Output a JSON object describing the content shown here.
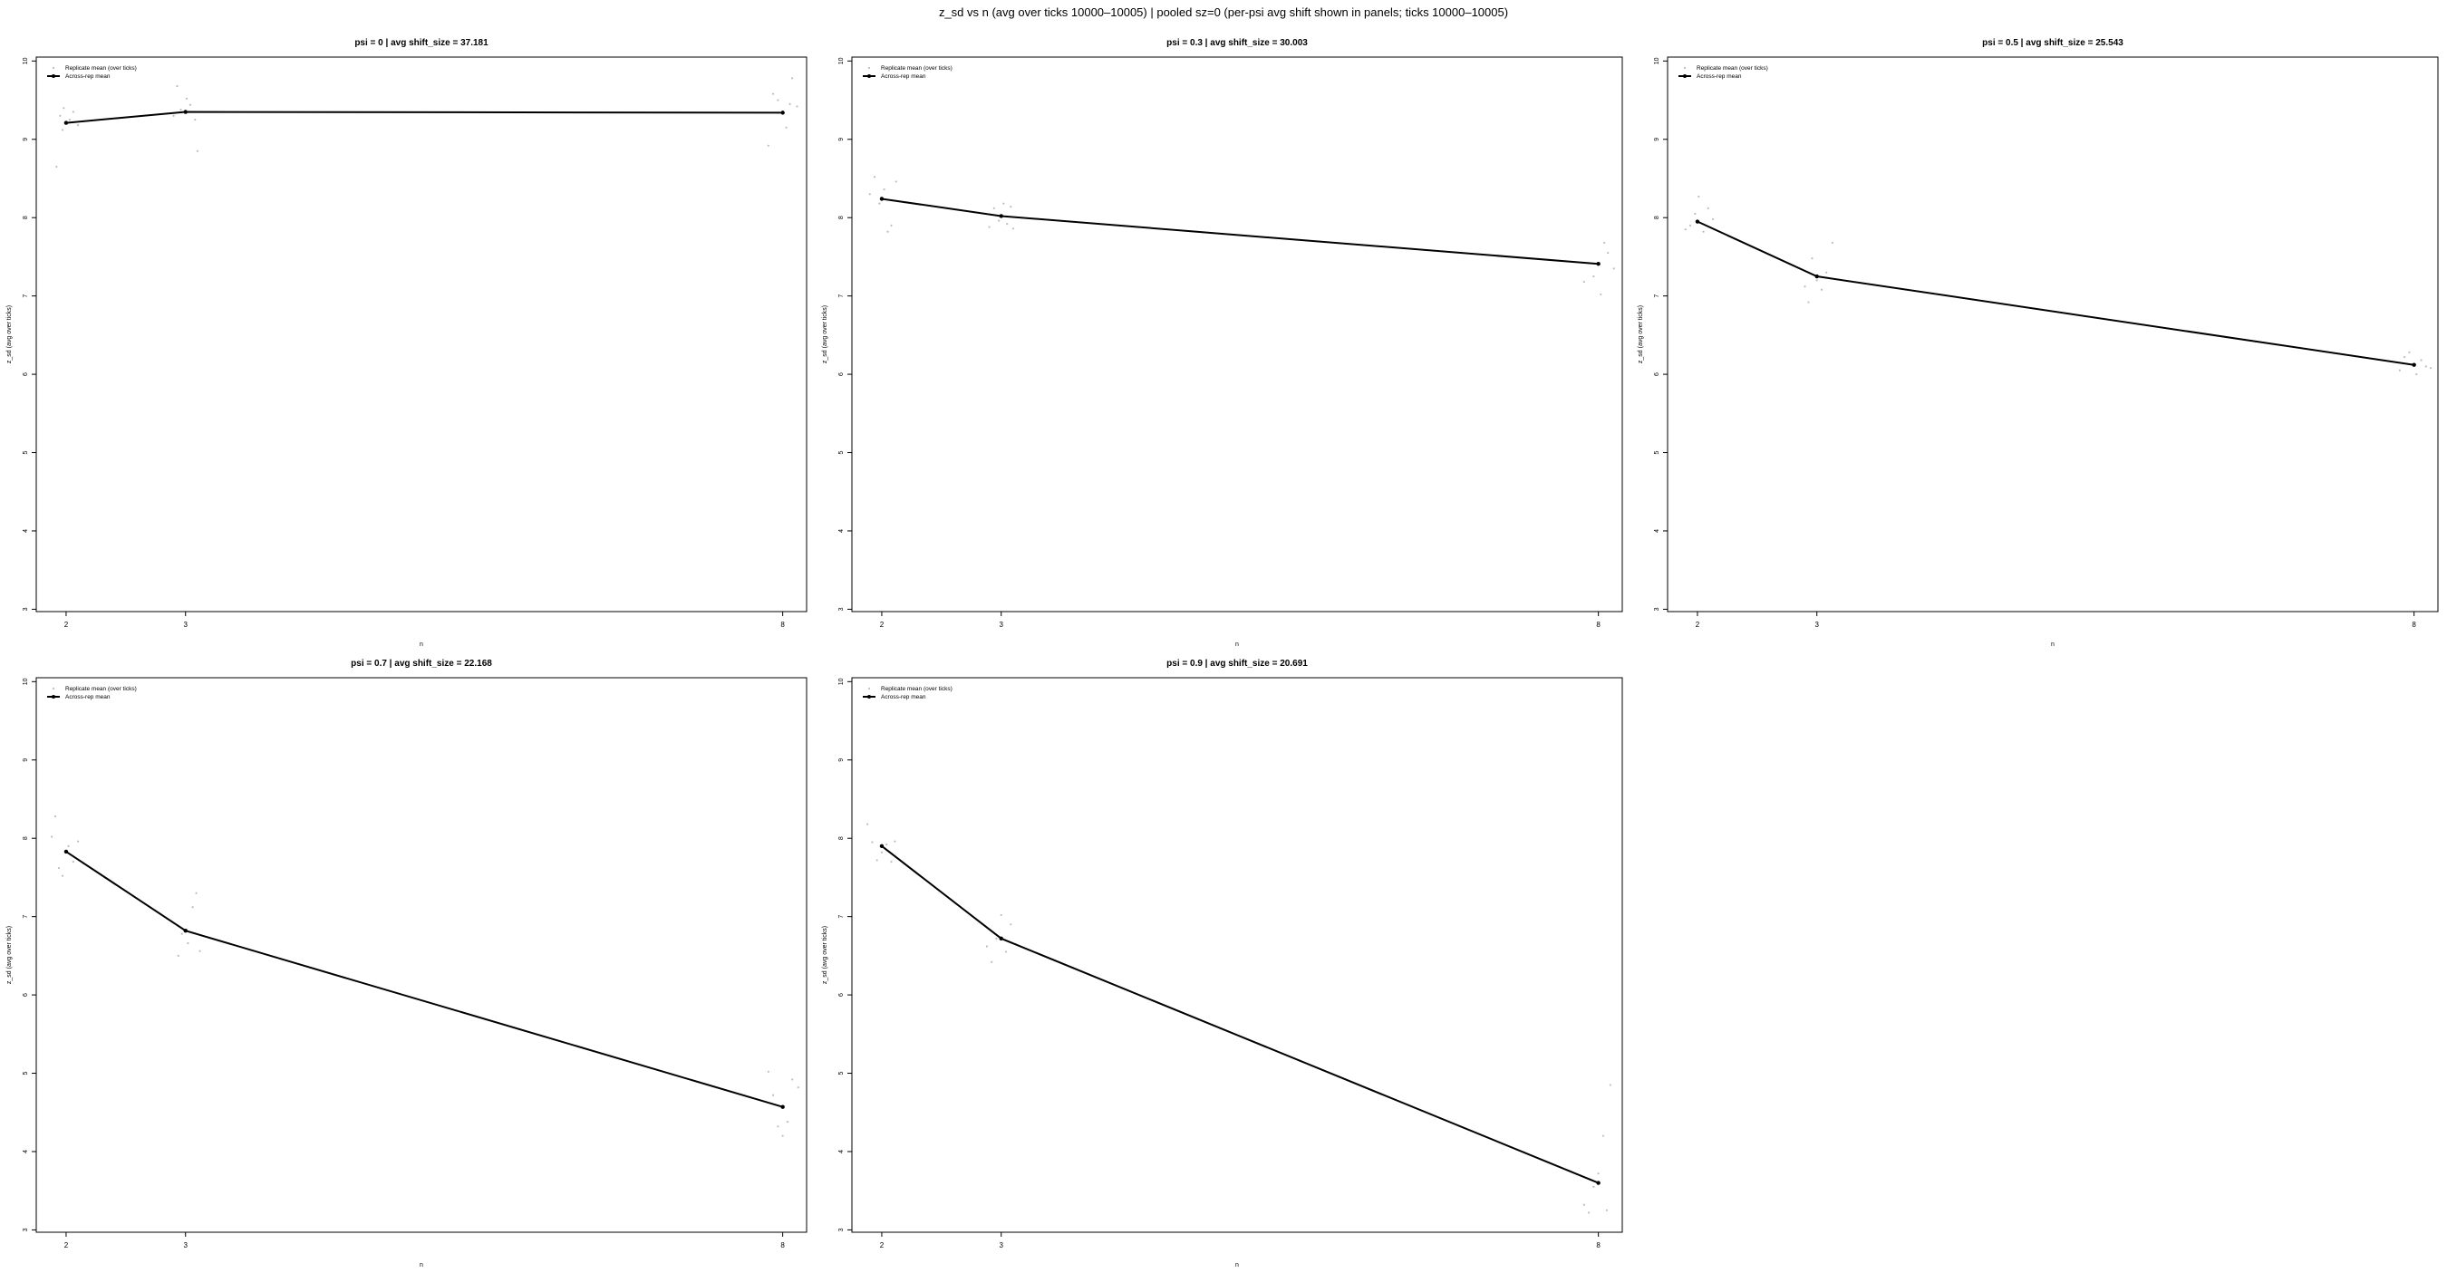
{
  "figure": {
    "suptitle": "z_sd vs n (avg over ticks 10000–10005) | pooled sz=0 (per-psi avg shift shown in panels; ticks 10000–10005)"
  },
  "chart_data": [
    {
      "type": "line",
      "title": "psi = 0 | avg shift_size = 37.181",
      "xlabel": "n",
      "ylabel": "z_sd (avg over ticks)",
      "x_ticks": [
        2,
        3,
        8
      ],
      "y_ticks": [
        3,
        4,
        5,
        6,
        7,
        8,
        9,
        10
      ],
      "xlim": [
        1.75,
        8.2
      ],
      "ylim": [
        2.97,
        10.05
      ],
      "legend": {
        "position": "top-left",
        "entries": [
          "Replicate mean (over ticks)",
          "Across-rep mean"
        ]
      },
      "series": [
        {
          "name": "Across-rep mean",
          "x": [
            2,
            3,
            8
          ],
          "y": [
            9.21,
            9.35,
            9.34
          ]
        }
      ],
      "replicates": [
        {
          "x": 1.92,
          "y": 8.65
        },
        {
          "x": 1.95,
          "y": 9.3
        },
        {
          "x": 1.98,
          "y": 9.4
        },
        {
          "x": 2.03,
          "y": 9.25
        },
        {
          "x": 2.06,
          "y": 9.35
        },
        {
          "x": 2.1,
          "y": 9.18
        },
        {
          "x": 1.97,
          "y": 9.12
        },
        {
          "x": 2.9,
          "y": 9.3
        },
        {
          "x": 2.93,
          "y": 9.68
        },
        {
          "x": 2.96,
          "y": 9.38
        },
        {
          "x": 3.01,
          "y": 9.52
        },
        {
          "x": 3.04,
          "y": 9.44
        },
        {
          "x": 3.08,
          "y": 9.25
        },
        {
          "x": 3.1,
          "y": 8.85
        },
        {
          "x": 7.88,
          "y": 8.92
        },
        {
          "x": 7.92,
          "y": 9.58
        },
        {
          "x": 7.96,
          "y": 9.5
        },
        {
          "x": 8.03,
          "y": 9.15
        },
        {
          "x": 8.06,
          "y": 9.45
        },
        {
          "x": 8.08,
          "y": 9.78
        },
        {
          "x": 8.12,
          "y": 9.42
        }
      ]
    },
    {
      "type": "line",
      "title": "psi = 0.3 | avg shift_size = 30.003",
      "xlabel": "n",
      "ylabel": "z_sd (avg over ticks)",
      "x_ticks": [
        2,
        3,
        8
      ],
      "y_ticks": [
        3,
        4,
        5,
        6,
        7,
        8,
        9,
        10
      ],
      "xlim": [
        1.75,
        8.2
      ],
      "ylim": [
        2.97,
        10.05
      ],
      "legend": {
        "position": "top-left",
        "entries": [
          "Replicate mean (over ticks)",
          "Across-rep mean"
        ]
      },
      "series": [
        {
          "name": "Across-rep mean",
          "x": [
            2,
            3,
            8
          ],
          "y": [
            8.24,
            8.02,
            7.41
          ]
        }
      ],
      "replicates": [
        {
          "x": 1.9,
          "y": 8.3
        },
        {
          "x": 1.94,
          "y": 8.52
        },
        {
          "x": 1.98,
          "y": 8.18
        },
        {
          "x": 2.02,
          "y": 8.36
        },
        {
          "x": 2.05,
          "y": 7.82
        },
        {
          "x": 2.08,
          "y": 7.9
        },
        {
          "x": 2.12,
          "y": 8.46
        },
        {
          "x": 2.9,
          "y": 7.88
        },
        {
          "x": 2.94,
          "y": 8.12
        },
        {
          "x": 2.98,
          "y": 7.96
        },
        {
          "x": 3.02,
          "y": 8.18
        },
        {
          "x": 3.05,
          "y": 7.92
        },
        {
          "x": 3.08,
          "y": 8.14
        },
        {
          "x": 3.1,
          "y": 7.86
        },
        {
          "x": 7.88,
          "y": 7.18
        },
        {
          "x": 7.92,
          "y": 7.42
        },
        {
          "x": 7.96,
          "y": 7.25
        },
        {
          "x": 8.02,
          "y": 7.02
        },
        {
          "x": 8.05,
          "y": 7.68
        },
        {
          "x": 8.08,
          "y": 7.55
        },
        {
          "x": 8.13,
          "y": 7.35
        }
      ]
    },
    {
      "type": "line",
      "title": "psi = 0.5 | avg shift_size = 25.543",
      "xlabel": "n",
      "ylabel": "z_sd (avg over ticks)",
      "x_ticks": [
        2,
        3,
        8
      ],
      "y_ticks": [
        3,
        4,
        5,
        6,
        7,
        8,
        9,
        10
      ],
      "xlim": [
        1.75,
        8.2
      ],
      "ylim": [
        2.97,
        10.05
      ],
      "legend": {
        "position": "top-left",
        "entries": [
          "Replicate mean (over ticks)",
          "Across-rep mean"
        ]
      },
      "series": [
        {
          "name": "Across-rep mean",
          "x": [
            2,
            3,
            8
          ],
          "y": [
            7.95,
            7.25,
            6.12
          ]
        }
      ],
      "replicates": [
        {
          "x": 1.9,
          "y": 7.85
        },
        {
          "x": 1.94,
          "y": 7.9
        },
        {
          "x": 1.98,
          "y": 8.05
        },
        {
          "x": 2.01,
          "y": 8.27
        },
        {
          "x": 2.05,
          "y": 7.82
        },
        {
          "x": 2.09,
          "y": 8.12
        },
        {
          "x": 2.13,
          "y": 7.98
        },
        {
          "x": 2.9,
          "y": 7.12
        },
        {
          "x": 2.93,
          "y": 6.92
        },
        {
          "x": 2.96,
          "y": 7.48
        },
        {
          "x": 3.0,
          "y": 7.2
        },
        {
          "x": 3.04,
          "y": 7.08
        },
        {
          "x": 3.08,
          "y": 7.3
        },
        {
          "x": 3.13,
          "y": 7.68
        },
        {
          "x": 7.88,
          "y": 6.05
        },
        {
          "x": 7.92,
          "y": 6.22
        },
        {
          "x": 7.96,
          "y": 6.28
        },
        {
          "x": 8.02,
          "y": 6.0
        },
        {
          "x": 8.06,
          "y": 6.18
        },
        {
          "x": 8.1,
          "y": 6.1
        },
        {
          "x": 8.14,
          "y": 6.08
        }
      ]
    },
    {
      "type": "line",
      "title": "psi = 0.7 | avg shift_size = 22.168",
      "xlabel": "n",
      "ylabel": "z_sd (avg over ticks)",
      "x_ticks": [
        2,
        3,
        8
      ],
      "y_ticks": [
        3,
        4,
        5,
        6,
        7,
        8,
        9,
        10
      ],
      "xlim": [
        1.75,
        8.2
      ],
      "ylim": [
        2.97,
        10.05
      ],
      "legend": {
        "position": "top-left",
        "entries": [
          "Replicate mean (over ticks)",
          "Across-rep mean"
        ]
      },
      "series": [
        {
          "name": "Across-rep mean",
          "x": [
            2,
            3,
            8
          ],
          "y": [
            7.83,
            6.82,
            4.57
          ]
        }
      ],
      "replicates": [
        {
          "x": 1.88,
          "y": 8.02
        },
        {
          "x": 1.91,
          "y": 8.28
        },
        {
          "x": 1.94,
          "y": 7.62
        },
        {
          "x": 1.97,
          "y": 7.52
        },
        {
          "x": 2.02,
          "y": 7.9
        },
        {
          "x": 2.06,
          "y": 7.7
        },
        {
          "x": 2.1,
          "y": 7.96
        },
        {
          "x": 2.9,
          "y": 6.92
        },
        {
          "x": 2.94,
          "y": 6.5
        },
        {
          "x": 2.97,
          "y": 6.78
        },
        {
          "x": 3.02,
          "y": 6.66
        },
        {
          "x": 3.06,
          "y": 7.12
        },
        {
          "x": 3.09,
          "y": 7.3
        },
        {
          "x": 3.12,
          "y": 6.56
        },
        {
          "x": 7.88,
          "y": 5.02
        },
        {
          "x": 7.92,
          "y": 4.72
        },
        {
          "x": 7.96,
          "y": 4.32
        },
        {
          "x": 8.0,
          "y": 4.2
        },
        {
          "x": 8.04,
          "y": 4.38
        },
        {
          "x": 8.08,
          "y": 4.92
        },
        {
          "x": 8.13,
          "y": 4.82
        }
      ]
    },
    {
      "type": "line",
      "title": "psi = 0.9 | avg shift_size = 20.691",
      "xlabel": "n",
      "ylabel": "z_sd (avg over ticks)",
      "x_ticks": [
        2,
        3,
        8
      ],
      "y_ticks": [
        3,
        4,
        5,
        6,
        7,
        8,
        9,
        10
      ],
      "xlim": [
        1.75,
        8.2
      ],
      "ylim": [
        2.97,
        10.05
      ],
      "legend": {
        "position": "top-left",
        "entries": [
          "Replicate mean (over ticks)",
          "Across-rep mean"
        ]
      },
      "series": [
        {
          "name": "Across-rep mean",
          "x": [
            2,
            3,
            8
          ],
          "y": [
            7.9,
            6.72,
            3.6
          ]
        }
      ],
      "replicates": [
        {
          "x": 1.88,
          "y": 8.18
        },
        {
          "x": 1.92,
          "y": 7.95
        },
        {
          "x": 1.96,
          "y": 7.72
        },
        {
          "x": 2.0,
          "y": 7.82
        },
        {
          "x": 2.04,
          "y": 7.92
        },
        {
          "x": 2.08,
          "y": 7.7
        },
        {
          "x": 2.11,
          "y": 7.96
        },
        {
          "x": 2.88,
          "y": 6.62
        },
        {
          "x": 2.92,
          "y": 6.42
        },
        {
          "x": 2.96,
          "y": 6.72
        },
        {
          "x": 3.0,
          "y": 7.02
        },
        {
          "x": 3.04,
          "y": 6.55
        },
        {
          "x": 3.08,
          "y": 6.9
        },
        {
          "x": 3.12,
          "y": 6.65
        },
        {
          "x": 7.88,
          "y": 3.32
        },
        {
          "x": 7.92,
          "y": 3.22
        },
        {
          "x": 7.96,
          "y": 3.55
        },
        {
          "x": 8.0,
          "y": 3.72
        },
        {
          "x": 8.04,
          "y": 4.2
        },
        {
          "x": 8.07,
          "y": 3.25
        },
        {
          "x": 8.1,
          "y": 4.85
        }
      ]
    }
  ]
}
